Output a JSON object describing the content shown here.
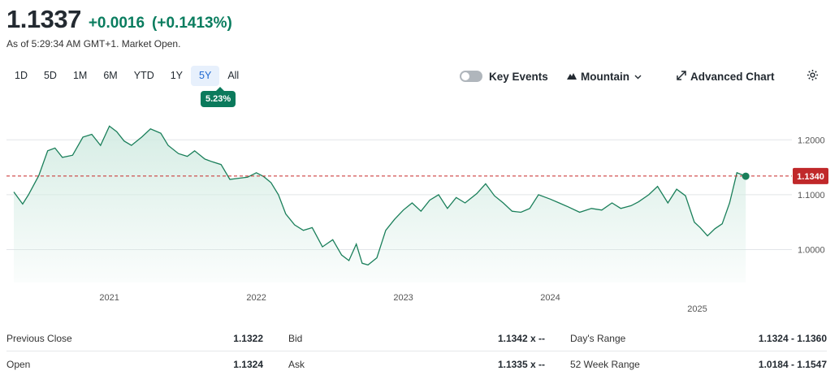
{
  "quote": {
    "price": "1.1337",
    "change": "+0.0016",
    "change_pct": "(+0.1413%)",
    "as_of": "As of 5:29:34 AM GMT+1. Market Open."
  },
  "ranges": [
    "1D",
    "5D",
    "1M",
    "6M",
    "YTD",
    "1Y",
    "5Y",
    "All"
  ],
  "active_range": "5Y",
  "range_change": "5.23%",
  "controls": {
    "key_events": "Key Events",
    "chart_type": "Mountain",
    "advanced": "Advanced Chart"
  },
  "icons": {
    "settings": "gear-icon",
    "expand": "expand-icon",
    "mountain": "mountain-icon",
    "dropdown": "chevron-down-icon"
  },
  "colors": {
    "line": "#1a7f5a",
    "fill_top": "#d2ebe2",
    "ref_line": "#c62828",
    "ref_badge": "#c0282a",
    "positive": "#0a7d5f"
  },
  "chart_data": {
    "type": "area",
    "x_ticks": [
      "2021",
      "2022",
      "2023",
      "2024",
      "2025"
    ],
    "x_tick_years": [
      2021,
      2022,
      2023,
      2024,
      2025
    ],
    "y_ticks": [
      "1.2000",
      "1.1000",
      "1.0000"
    ],
    "y_tick_values": [
      1.2,
      1.1,
      1.0
    ],
    "ylim": [
      0.94,
      1.27
    ],
    "xlim": [
      2020.3,
      2025.55
    ],
    "reference_value": 1.134,
    "reference_label": "1.1340",
    "last_point": [
      2025.33,
      1.1337
    ],
    "x": [
      2020.35,
      2020.41,
      2020.45,
      2020.52,
      2020.58,
      2020.63,
      2020.68,
      2020.75,
      2020.82,
      2020.88,
      2020.94,
      2021.0,
      2021.05,
      2021.1,
      2021.15,
      2021.22,
      2021.28,
      2021.35,
      2021.4,
      2021.47,
      2021.53,
      2021.58,
      2021.65,
      2021.7,
      2021.76,
      2021.82,
      2021.88,
      2021.94,
      2022.0,
      2022.05,
      2022.1,
      2022.15,
      2022.2,
      2022.26,
      2022.32,
      2022.38,
      2022.45,
      2022.52,
      2022.58,
      2022.63,
      2022.68,
      2022.72,
      2022.76,
      2022.82,
      2022.88,
      2022.94,
      2023.0,
      2023.06,
      2023.12,
      2023.18,
      2023.24,
      2023.3,
      2023.36,
      2023.42,
      2023.5,
      2023.56,
      2023.62,
      2023.68,
      2023.74,
      2023.8,
      2023.86,
      2023.92,
      2024.0,
      2024.06,
      2024.12,
      2024.2,
      2024.28,
      2024.35,
      2024.42,
      2024.48,
      2024.55,
      2024.6,
      2024.67,
      2024.73,
      2024.8,
      2024.86,
      2024.92,
      2024.98,
      2025.02,
      2025.07,
      2025.12,
      2025.17,
      2025.22,
      2025.27,
      2025.33
    ],
    "y": [
      1.105,
      1.083,
      1.1,
      1.135,
      1.18,
      1.185,
      1.168,
      1.172,
      1.205,
      1.21,
      1.19,
      1.225,
      1.215,
      1.198,
      1.19,
      1.205,
      1.22,
      1.212,
      1.19,
      1.175,
      1.17,
      1.18,
      1.165,
      1.16,
      1.155,
      1.128,
      1.13,
      1.132,
      1.14,
      1.133,
      1.122,
      1.1,
      1.065,
      1.045,
      1.035,
      1.04,
      1.005,
      1.018,
      0.99,
      0.98,
      1.01,
      0.975,
      0.972,
      0.985,
      1.035,
      1.055,
      1.072,
      1.085,
      1.07,
      1.09,
      1.1,
      1.075,
      1.095,
      1.085,
      1.102,
      1.12,
      1.098,
      1.085,
      1.07,
      1.068,
      1.075,
      1.1,
      1.092,
      1.085,
      1.078,
      1.068,
      1.075,
      1.072,
      1.085,
      1.075,
      1.08,
      1.087,
      1.1,
      1.115,
      1.085,
      1.11,
      1.098,
      1.05,
      1.04,
      1.025,
      1.038,
      1.047,
      1.085,
      1.14,
      1.1337
    ]
  },
  "stats": [
    [
      {
        "label": "Previous Close",
        "value": "1.1322"
      },
      {
        "label": "Bid",
        "value": "1.1342 x --"
      },
      {
        "label": "Day's Range",
        "value": "1.1324 - 1.1360"
      }
    ],
    [
      {
        "label": "Open",
        "value": "1.1324"
      },
      {
        "label": "Ask",
        "value": "1.1335 x --"
      },
      {
        "label": "52 Week Range",
        "value": "1.0184 - 1.1547"
      }
    ]
  ]
}
